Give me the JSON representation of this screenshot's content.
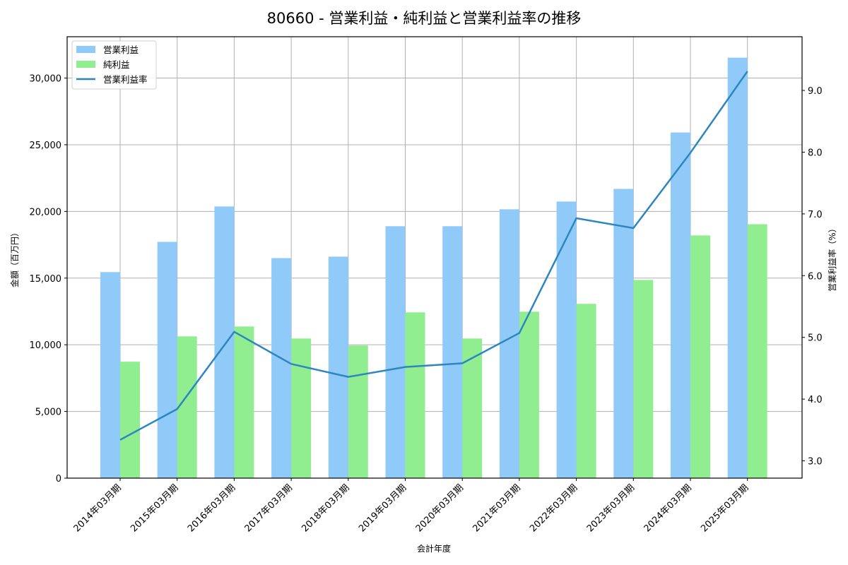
{
  "title": "80660 - 営業利益・純利益と営業利益率の推移",
  "chart_data": {
    "type": "bar",
    "title": "80660 - 営業利益・純利益と営業利益率の推移",
    "xlabel": "会計年度",
    "ylabel": "金額（百万円）",
    "y2label": "営業利益率（%）",
    "categories": [
      "2014年03月期",
      "2015年03月期",
      "2016年03月期",
      "2017年03月期",
      "2018年03月期",
      "2019年03月期",
      "2020年03月期",
      "2021年03月期",
      "2022年03月期",
      "2023年03月期",
      "2024年03月期",
      "2025年03月期"
    ],
    "series": [
      {
        "name": "営業利益",
        "type": "bar",
        "axis": "left",
        "color": "#90CAF9",
        "values": [
          15450,
          17720,
          20370,
          16500,
          16610,
          18890,
          18890,
          20160,
          20740,
          21690,
          25920,
          31530
        ]
      },
      {
        "name": "純利益",
        "type": "bar",
        "axis": "left",
        "color": "#90EE90",
        "values": [
          8730,
          10630,
          11370,
          10470,
          9950,
          12430,
          10470,
          12480,
          13070,
          14860,
          18200,
          19040
        ]
      },
      {
        "name": "営業利益率",
        "type": "line",
        "axis": "right",
        "color": "#2E86C1",
        "values": [
          3.34,
          3.84,
          5.09,
          4.57,
          4.36,
          4.52,
          4.58,
          5.07,
          6.93,
          6.77,
          7.99,
          9.31
        ]
      }
    ],
    "ylim": [
      0,
      33100
    ],
    "y2lim": [
      2.72,
      9.87
    ],
    "yticks": [
      0,
      5000,
      10000,
      15000,
      20000,
      25000,
      30000
    ],
    "ytick_labels": [
      "0",
      "5,000",
      "10,000",
      "15,000",
      "20,000",
      "25,000",
      "30,000"
    ],
    "y2ticks": [
      3.0,
      4.0,
      5.0,
      6.0,
      7.0,
      8.0,
      9.0
    ],
    "y2tick_labels": [
      "3.0",
      "4.0",
      "5.0",
      "6.0",
      "7.0",
      "8.0",
      "9.0"
    ],
    "grid": true,
    "legend_position": "upper left"
  },
  "legend": [
    {
      "label": "営業利益",
      "kind": "patch",
      "color": "#90CAF9"
    },
    {
      "label": "純利益",
      "kind": "patch",
      "color": "#90EE90"
    },
    {
      "label": "営業利益率",
      "kind": "line",
      "color": "#2E86C1"
    }
  ]
}
